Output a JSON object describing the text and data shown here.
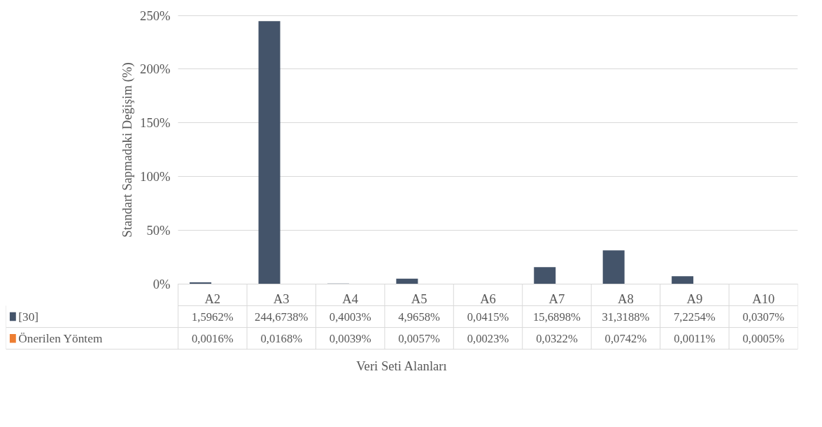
{
  "chart_data": {
    "type": "bar",
    "xlabel": "Veri Seti Alanları",
    "ylabel": "Standart Sapmadaki Değişim (%)",
    "categories": [
      "A2",
      "A3",
      "A4",
      "A5",
      "A6",
      "A7",
      "A8",
      "A9",
      "A10"
    ],
    "series": [
      {
        "name": "[30]",
        "color": "#44546a",
        "values": [
          1.5962,
          244.6738,
          0.4003,
          4.9658,
          0.0415,
          15.6898,
          31.3188,
          7.2254,
          0.0307
        ],
        "value_labels": [
          "1,5962%",
          "244,6738%",
          "0,4003%",
          "4,9658%",
          "0,0415%",
          "15,6898%",
          "31,3188%",
          "7,2254%",
          "0,0307%"
        ]
      },
      {
        "name": "Önerilen Yöntem",
        "color": "#ed7d31",
        "values": [
          0.0016,
          0.0168,
          0.0039,
          0.0057,
          0.0023,
          0.0322,
          0.0742,
          0.0011,
          0.0005
        ],
        "value_labels": [
          "0,0016%",
          "0,0168%",
          "0,0039%",
          "0,0057%",
          "0,0023%",
          "0,0322%",
          "0,0742%",
          "0,0011%",
          "0,0005%"
        ]
      }
    ],
    "ylim": [
      0,
      250
    ],
    "yticks": [
      {
        "value": 0,
        "label": "0%"
      },
      {
        "value": 50,
        "label": "50%"
      },
      {
        "value": 100,
        "label": "100%"
      },
      {
        "value": 150,
        "label": "150%"
      },
      {
        "value": 200,
        "label": "200%"
      },
      {
        "value": 250,
        "label": "250%"
      }
    ],
    "grid": "y",
    "legend": "bottom"
  }
}
